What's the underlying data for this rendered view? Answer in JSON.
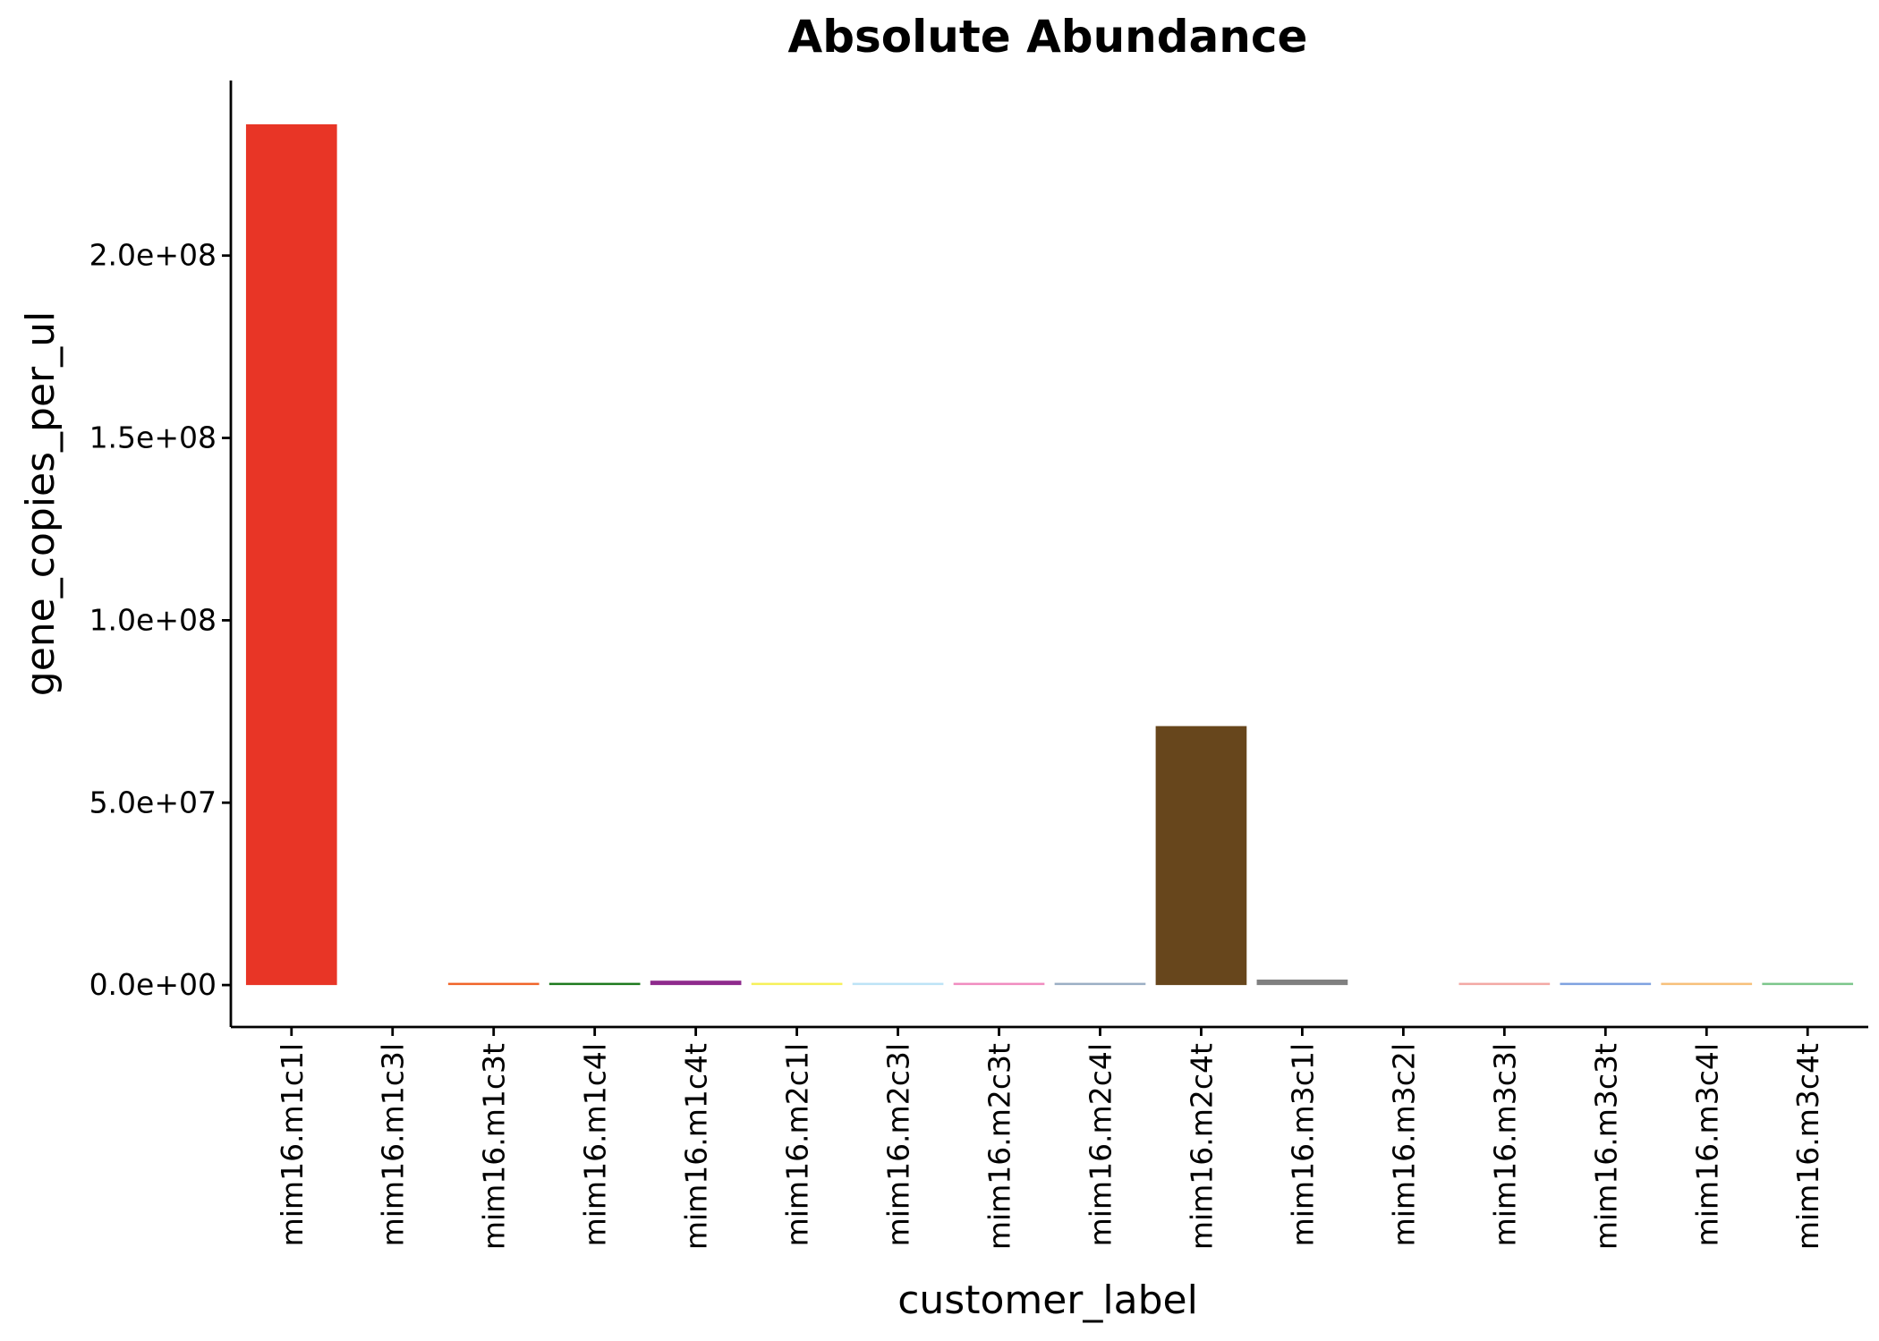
{
  "chart_data": {
    "type": "bar",
    "title": "Absolute Abundance",
    "xlabel": "customer_label",
    "ylabel": "gene_copies_per_ul",
    "ylim": [
      -11500000,
      248000000
    ],
    "yticks": [
      0,
      50000000,
      100000000,
      150000000,
      200000000
    ],
    "ytick_labels": [
      "0.0e+00",
      "5.0e+07",
      "1.0e+08",
      "1.5e+08",
      "2.0e+08"
    ],
    "grid": false,
    "legend": "none",
    "categories": [
      "mim16.m1c1l",
      "mim16.m1c3l",
      "mim16.m1c3t",
      "mim16.m1c4l",
      "mim16.m1c4t",
      "mim16.m2c1l",
      "mim16.m2c3l",
      "mim16.m2c3t",
      "mim16.m2c4l",
      "mim16.m2c4t",
      "mim16.m3c1l",
      "mim16.m3c2l",
      "mim16.m3c3l",
      "mim16.m3c3t",
      "mim16.m3c4l",
      "mim16.m3c4t"
    ],
    "values": [
      236000000,
      0,
      300000,
      400000,
      1200000,
      300000,
      200000,
      600000,
      200000,
      71000000,
      1500000,
      0,
      200000,
      500000,
      500000,
      400000
    ],
    "colors": [
      "#E83526",
      "#8B4513",
      "#F0652A",
      "#1E7A1E",
      "#8E2A8C",
      "#F6F05A",
      "#BDE3F6",
      "#F08CC0",
      "#9BAFC4",
      "#67461C",
      "#808080",
      "#3A3A3A",
      "#F3A8A4",
      "#7FA2E0",
      "#F7C07A",
      "#7CC68B"
    ]
  }
}
